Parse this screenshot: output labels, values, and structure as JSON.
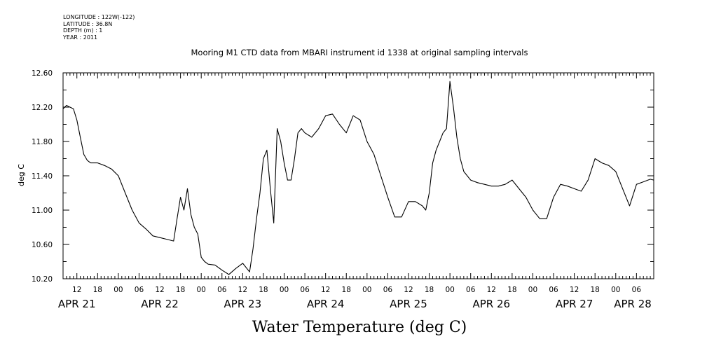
{
  "meta": {
    "longitude": "LONGITUDE : 122W(-122)",
    "latitude": "LATITUDE : 36.8N",
    "depth": "DEPTH (m) : 1",
    "year": "YEAR : 2011"
  },
  "chart_data": {
    "type": "line",
    "title": "Mooring M1 CTD data from MBARI instrument id 1338 at original sampling intervals",
    "xlabel": "Water Temperature (deg C)",
    "ylabel": "deg C",
    "ylim": [
      10.2,
      12.6
    ],
    "yticks": [
      "10.20",
      "10.60",
      "11.00",
      "11.40",
      "11.80",
      "12.20",
      "12.60"
    ],
    "xlim": [
      "2011-04-21 08:00",
      "2011-04-28 11:00"
    ],
    "hour_labels": [
      "12",
      "18",
      "00",
      "06",
      "12",
      "18",
      "00",
      "06",
      "12",
      "18",
      "00",
      "06",
      "12",
      "18",
      "00",
      "06",
      "12",
      "18",
      "00",
      "06",
      "12",
      "18",
      "00",
      "06",
      "12",
      "18",
      "00",
      "06"
    ],
    "date_labels": [
      "APR 21",
      "APR 22",
      "APR 23",
      "APR 24",
      "APR 25",
      "APR 26",
      "APR 27",
      "APR 28"
    ],
    "grid": false,
    "series": [
      {
        "x": [
          "04-21 08:00",
          "04-21 09:00",
          "04-21 10:00",
          "04-21 11:00",
          "04-21 12:00",
          "04-21 13:00",
          "04-21 14:00",
          "04-21 15:00",
          "04-21 16:00",
          "04-21 18:00",
          "04-21 20:00",
          "04-21 22:00",
          "04-22 00:00",
          "04-22 02:00",
          "04-22 04:00",
          "04-22 06:00",
          "04-22 08:00",
          "04-22 10:00",
          "04-22 12:00",
          "04-22 14:00",
          "04-22 16:00",
          "04-22 17:00",
          "04-22 18:00",
          "04-22 19:00",
          "04-22 20:00",
          "04-22 21:00",
          "04-22 22:00",
          "04-22 23:00",
          "04-23 00:00",
          "04-23 01:00",
          "04-23 02:00",
          "04-23 04:00",
          "04-23 06:00",
          "04-23 08:00",
          "04-23 10:00",
          "04-23 12:00",
          "04-23 14:00",
          "04-23 15:00",
          "04-23 16:00",
          "04-23 17:00",
          "04-23 18:00",
          "04-23 19:00",
          "04-23 20:00",
          "04-23 21:00",
          "04-23 22:00",
          "04-23 23:00",
          "04-24 00:00",
          "04-24 01:00",
          "04-24 02:00",
          "04-24 03:00",
          "04-24 04:00",
          "04-24 05:00",
          "04-24 06:00",
          "04-24 08:00",
          "04-24 10:00",
          "04-24 12:00",
          "04-24 14:00",
          "04-24 16:00",
          "04-24 18:00",
          "04-24 20:00",
          "04-24 22:00",
          "04-25 00:00",
          "04-25 02:00",
          "04-25 04:00",
          "04-25 06:00",
          "04-25 08:00",
          "04-25 10:00",
          "04-25 12:00",
          "04-25 14:00",
          "04-25 16:00",
          "04-25 17:00",
          "04-25 18:00",
          "04-25 19:00",
          "04-25 20:00",
          "04-25 21:00",
          "04-25 22:00",
          "04-25 23:00",
          "04-26 00:00",
          "04-26 01:00",
          "04-26 02:00",
          "04-26 03:00",
          "04-26 04:00",
          "04-26 06:00",
          "04-26 08:00",
          "04-26 10:00",
          "04-26 12:00",
          "04-26 14:00",
          "04-26 16:00",
          "04-26 18:00",
          "04-26 20:00",
          "04-26 22:00",
          "04-27 00:00",
          "04-27 02:00",
          "04-27 04:00",
          "04-27 06:00",
          "04-27 08:00",
          "04-27 10:00",
          "04-27 12:00",
          "04-27 14:00",
          "04-27 16:00",
          "04-27 18:00",
          "04-27 20:00",
          "04-27 22:00",
          "04-28 00:00",
          "04-28 02:00",
          "04-28 04:00",
          "04-28 06:00",
          "04-28 08:00",
          "04-28 10:00",
          "04-28 11:00"
        ],
        "values": [
          12.18,
          12.22,
          12.2,
          12.18,
          12.05,
          11.85,
          11.65,
          11.58,
          11.55,
          11.55,
          11.52,
          11.48,
          11.4,
          11.2,
          11.0,
          10.85,
          10.78,
          10.7,
          10.68,
          10.66,
          10.64,
          10.9,
          11.15,
          11.0,
          11.25,
          10.95,
          10.8,
          10.72,
          10.45,
          10.4,
          10.37,
          10.36,
          10.3,
          10.25,
          10.32,
          10.38,
          10.28,
          10.55,
          10.9,
          11.2,
          11.6,
          11.7,
          11.25,
          10.85,
          11.95,
          11.8,
          11.55,
          11.35,
          11.35,
          11.6,
          11.9,
          11.95,
          11.9,
          11.85,
          11.95,
          12.1,
          12.12,
          12.0,
          11.9,
          12.1,
          12.05,
          11.8,
          11.65,
          11.4,
          11.15,
          10.92,
          10.92,
          11.1,
          11.1,
          11.05,
          11.0,
          11.2,
          11.55,
          11.7,
          11.8,
          11.9,
          11.95,
          12.5,
          12.2,
          11.85,
          11.6,
          11.45,
          11.35,
          11.32,
          11.3,
          11.28,
          11.28,
          11.3,
          11.35,
          11.25,
          11.15,
          11.0,
          10.9,
          10.9,
          11.15,
          11.3,
          11.28,
          11.25,
          11.22,
          11.35,
          11.6,
          11.55,
          11.52,
          11.45,
          11.25,
          11.05,
          11.3,
          11.33,
          11.36,
          11.35
        ]
      }
    ]
  }
}
